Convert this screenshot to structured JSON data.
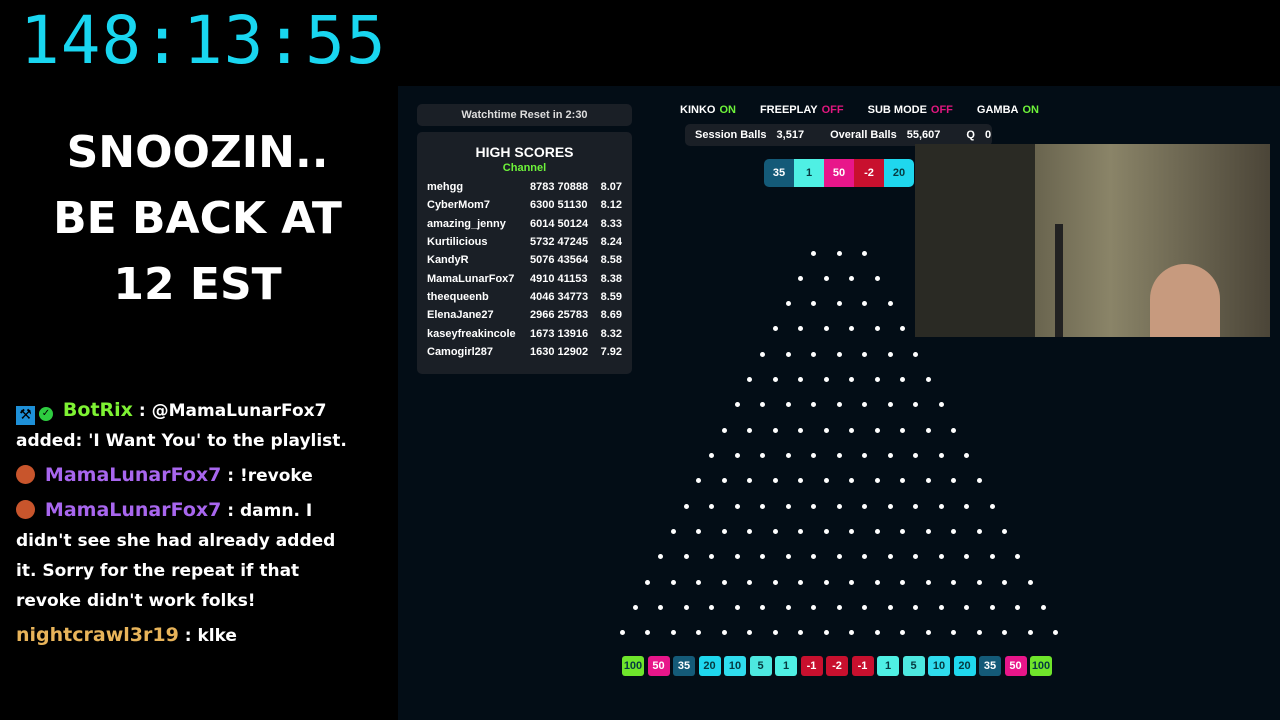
{
  "timer": "148:13:55",
  "status_lines": [
    "SNOOZIN..",
    "BE BACK AT",
    "12 EST"
  ],
  "chat": [
    {
      "user": "BotRix",
      "text": ": @MamaLunarFox7 added: 'I Want You' to the playlist.",
      "badges": [
        "mod-hammer-icon",
        "verified-icon"
      ]
    },
    {
      "user": "MamaLunarFox7",
      "text": ": !revoke",
      "badges": [
        "avatar-icon"
      ]
    },
    {
      "user": "MamaLunarFox7",
      "text": ": damn. I didn't see she had already added it. Sorry for the repeat if that revoke didn't work folks!",
      "badges": [
        "avatar-icon"
      ]
    },
    {
      "user": "nightcrawl3r19",
      "text": ": klke",
      "badges": []
    }
  ],
  "watchtime": "Watchtime Reset in  2:30",
  "highscores": {
    "title": "HIGH SCORES",
    "subtitle": "Channel",
    "rows": [
      [
        "mehgg",
        "8783 70888",
        "8.07"
      ],
      [
        "CyberMom7",
        "6300 51130",
        "8.12"
      ],
      [
        "amazing_jenny",
        "6014 50124",
        "8.33"
      ],
      [
        "Kurtilicious",
        "5732 47245",
        "8.24"
      ],
      [
        "KandyR",
        "5076 43564",
        "8.58"
      ],
      [
        "MamaLunarFox7",
        "4910 41153",
        "8.38"
      ],
      [
        "theequeenb",
        "4046 34773",
        "8.59"
      ],
      [
        "ElenaJane27",
        "2966 25783",
        "8.69"
      ],
      [
        "kaseyfreakincole",
        "1673 13916",
        "8.32"
      ],
      [
        "Camogirl287",
        "1630 12902",
        "7.92"
      ]
    ]
  },
  "flags": [
    {
      "label": "KINKO",
      "state": "ON"
    },
    {
      "label": "FREEPLAY",
      "state": "OFF"
    },
    {
      "label": "SUB MODE",
      "state": "OFF"
    },
    {
      "label": "GAMBA",
      "state": "ON"
    }
  ],
  "stats": {
    "session_label": "Session Balls",
    "session": "3,517",
    "overall_label": "Overall Balls",
    "overall": "55,607",
    "q_label": "Q",
    "q": "0"
  },
  "recent": [
    "35",
    "1",
    "50",
    "-2",
    "20"
  ],
  "slots": [
    "100",
    "50",
    "35",
    "20",
    "10",
    "5",
    "1",
    "-1",
    "-2",
    "-1",
    "1",
    "5",
    "10",
    "20",
    "35",
    "50",
    "100"
  ],
  "slot_colors": {
    "100": "#6fe52b",
    "50": "#e8168a",
    "35": "#145a78",
    "20": "#1fd7ee",
    "10": "#2fdcee",
    "5": "#4de8e0",
    "1": "#4ff0e4",
    "-1": "#c8102e",
    "-2": "#c8102e"
  },
  "peg_rows": 16
}
